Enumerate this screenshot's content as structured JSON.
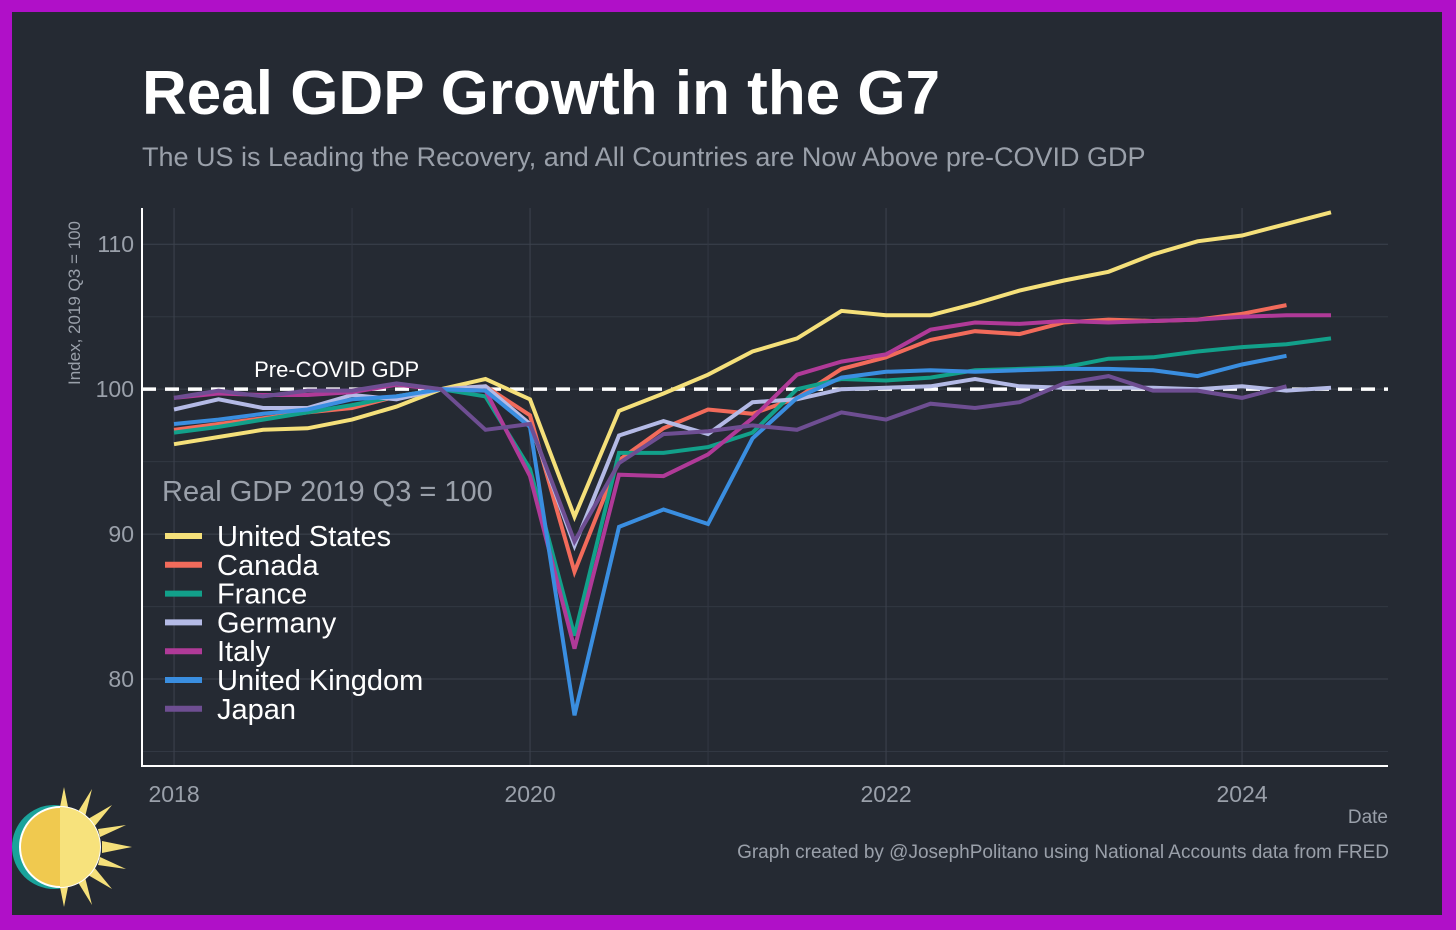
{
  "title": "Real GDP Growth in the G7",
  "subtitle": "The US is Leading the Recovery, and All Countries are Now Above pre-COVID GDP",
  "credit": "Graph created by @JosephPolitano using National Accounts data from FRED",
  "chart_data": {
    "type": "line",
    "ylabel": "Index, 2019 Q3 = 100",
    "xlabel": "Date",
    "xlim": [
      2017.82,
      2024.82
    ],
    "ylim": [
      74,
      112.5
    ],
    "x_ticks": [
      2018,
      2020,
      2022,
      2024
    ],
    "x_tick_labels": [
      "2018",
      "2020",
      "2022",
      "2024"
    ],
    "y_ticks": [
      80,
      90,
      100,
      110
    ],
    "y_tick_labels": [
      "80",
      "90",
      "100",
      "110"
    ],
    "grid": true,
    "legend_title": "Real GDP 2019 Q3 = 100",
    "legend_position": "left",
    "reference_line": {
      "y": 100,
      "label": "Pre-COVID GDP",
      "style": "dashed"
    },
    "x": [
      2018.0,
      2018.25,
      2018.5,
      2018.75,
      2019.0,
      2019.25,
      2019.5,
      2019.75,
      2020.0,
      2020.25,
      2020.5,
      2020.75,
      2021.0,
      2021.25,
      2021.5,
      2021.75,
      2022.0,
      2022.25,
      2022.5,
      2022.75,
      2023.0,
      2023.25,
      2023.5,
      2023.75,
      2024.0,
      2024.25,
      2024.5
    ],
    "series": [
      {
        "name": "United States",
        "color": "#f5e07a",
        "values": [
          96.2,
          96.7,
          97.2,
          97.3,
          97.9,
          98.8,
          100.0,
          100.7,
          99.3,
          91.2,
          98.5,
          99.7,
          101.0,
          102.6,
          103.5,
          105.4,
          105.1,
          105.1,
          105.9,
          106.8,
          107.5,
          108.1,
          109.3,
          110.2,
          110.6,
          111.4,
          112.2
        ]
      },
      {
        "name": "Canada",
        "color": "#f26b5b",
        "values": [
          97.2,
          97.6,
          98.0,
          98.4,
          98.7,
          99.5,
          100.0,
          100.2,
          98.2,
          87.4,
          95.1,
          97.3,
          98.6,
          98.3,
          99.4,
          101.4,
          102.2,
          103.4,
          104.0,
          103.8,
          104.6,
          104.8,
          104.7,
          104.8,
          105.2,
          105.8,
          null
        ]
      },
      {
        "name": "France",
        "color": "#12a08a",
        "values": [
          97.0,
          97.4,
          97.9,
          98.4,
          98.9,
          99.5,
          100.0,
          99.5,
          94.5,
          83.0,
          95.6,
          95.6,
          96.0,
          97.0,
          100.0,
          100.7,
          100.6,
          100.8,
          101.3,
          101.4,
          101.5,
          102.1,
          102.2,
          102.6,
          102.9,
          103.1,
          103.5
        ]
      },
      {
        "name": "Germany",
        "color": "#b4bae6",
        "values": [
          98.6,
          99.3,
          98.7,
          98.7,
          99.6,
          99.3,
          100.0,
          100.2,
          97.6,
          89.2,
          96.8,
          97.8,
          96.9,
          99.1,
          99.3,
          100.0,
          100.1,
          100.2,
          100.7,
          100.2,
          100.1,
          100.1,
          100.1,
          100.0,
          100.2,
          99.9,
          100.1
        ]
      },
      {
        "name": "Italy",
        "color": "#b03a98",
        "values": [
          99.4,
          99.7,
          99.6,
          99.6,
          99.8,
          100.3,
          100.0,
          99.9,
          94.0,
          82.1,
          94.1,
          94.0,
          95.5,
          98.0,
          101.0,
          101.9,
          102.4,
          104.1,
          104.6,
          104.5,
          104.7,
          104.6,
          104.7,
          104.8,
          105.0,
          105.1,
          105.1
        ]
      },
      {
        "name": "United Kingdom",
        "color": "#3a8ee0",
        "values": [
          97.6,
          97.9,
          98.3,
          98.6,
          99.3,
          99.5,
          100.0,
          99.9,
          97.4,
          77.5,
          90.5,
          91.7,
          90.7,
          96.6,
          99.4,
          100.8,
          101.2,
          101.3,
          101.2,
          101.3,
          101.4,
          101.4,
          101.3,
          100.9,
          101.7,
          102.3,
          null
        ]
      },
      {
        "name": "Japan",
        "color": "#6e4e92",
        "values": [
          99.4,
          99.9,
          99.5,
          99.9,
          99.9,
          100.4,
          100.0,
          97.2,
          97.6,
          89.5,
          94.9,
          96.9,
          97.1,
          97.5,
          97.2,
          98.4,
          97.9,
          99.0,
          98.7,
          99.1,
          100.4,
          100.9,
          99.9,
          99.9,
          99.4,
          100.2,
          null
        ]
      }
    ]
  },
  "logo": {
    "name": "sun-logo",
    "colors": [
      "#f5e07a",
      "#1aa39b"
    ]
  }
}
